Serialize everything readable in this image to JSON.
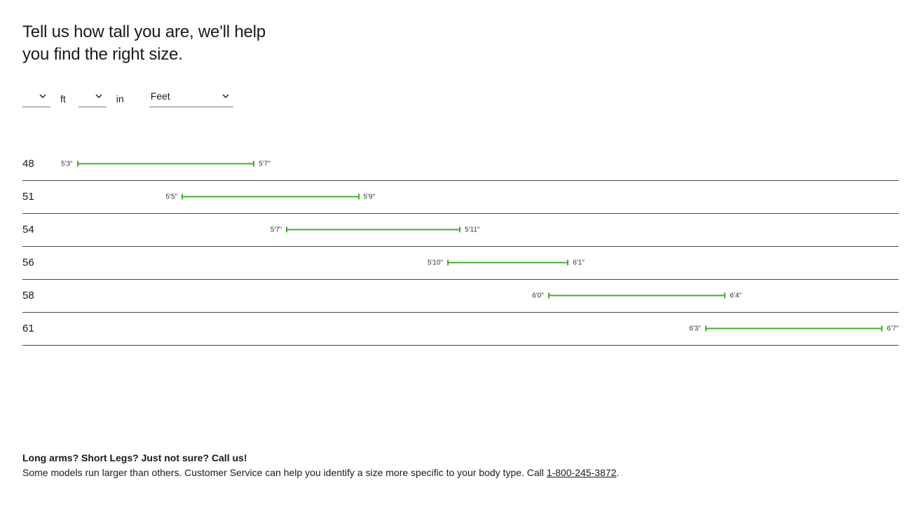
{
  "heading": "Tell us how tall you are, we'll help you find the right size.",
  "controls": {
    "ft_unit": "ft",
    "in_unit": "in",
    "unit_system": "Feet"
  },
  "chart": {
    "bar_color": "#3fae29",
    "range_min_inches": 63,
    "range_max_inches": 79,
    "sizes": [
      {
        "size": "48",
        "low": "5'3\"",
        "high": "5'7\"",
        "low_in": 63,
        "high_in": 67
      },
      {
        "size": "51",
        "low": "5'5\"",
        "high": "5'9\"",
        "low_in": 65,
        "high_in": 69
      },
      {
        "size": "54",
        "low": "5'7\"",
        "high": "5'11\"",
        "low_in": 67,
        "high_in": 71
      },
      {
        "size": "56",
        "low": "5'10\"",
        "high": "6'1\"",
        "low_in": 70,
        "high_in": 73
      },
      {
        "size": "58",
        "low": "6'0\"",
        "high": "6'4\"",
        "low_in": 72,
        "high_in": 76
      },
      {
        "size": "61",
        "low": "6'3\"",
        "high": "6'7\"",
        "low_in": 75,
        "high_in": 79
      }
    ]
  },
  "footer": {
    "title": "Long arms? Short Legs? Just not sure? Call us!",
    "body_pre": "Some models run larger than others. Customer Service can help you identify a size more specific to your body type. Call ",
    "phone": "1-800-245-3872",
    "body_post": "."
  }
}
